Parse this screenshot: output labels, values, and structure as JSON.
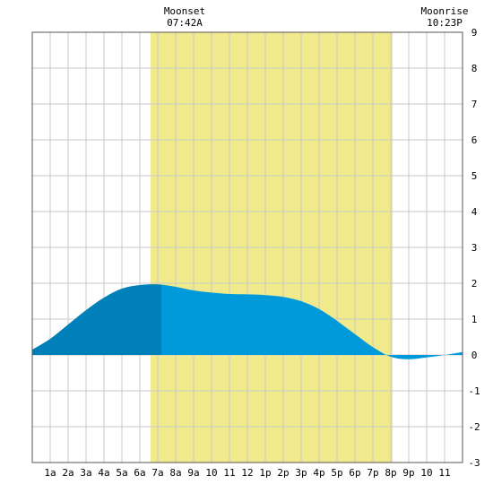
{
  "moonset": {
    "label": "Moonset",
    "time": "07:42A"
  },
  "moonrise": {
    "label": "Moonrise",
    "time": "10:23P"
  },
  "colors": {
    "background": "#ffffff",
    "grid": "#c8c8c8",
    "frame": "#555555",
    "daylight": "#f0ea8c",
    "tide_dark": "#0080b8",
    "tide_light": "#0099da"
  },
  "chart_data": {
    "type": "area",
    "title": "",
    "xlabel": "",
    "ylabel": "",
    "x_tick_labels": [
      "1a",
      "2a",
      "3a",
      "4a",
      "5a",
      "6a",
      "7a",
      "8a",
      "9a",
      "10",
      "11",
      "12",
      "1p",
      "2p",
      "3p",
      "4p",
      "5p",
      "6p",
      "7p",
      "8p",
      "9p",
      "10",
      "11"
    ],
    "x_range_hours": [
      0,
      24
    ],
    "ylim": [
      -3,
      9
    ],
    "y_ticks": [
      -3,
      -2,
      -1,
      0,
      1,
      2,
      3,
      4,
      5,
      6,
      7,
      8,
      9
    ],
    "grid": true,
    "daylight_band_hours": [
      6.6,
      20.1
    ],
    "dark_shading_until_hour": 7.2,
    "series": [
      {
        "x": [
          0,
          1,
          2,
          3,
          4,
          5,
          6,
          7,
          8,
          9,
          10,
          11,
          12,
          13,
          14,
          15,
          16,
          17,
          18,
          19,
          20,
          21,
          22,
          23,
          24
        ],
        "values": [
          0.15,
          0.45,
          0.85,
          1.25,
          1.6,
          1.85,
          1.95,
          1.97,
          1.9,
          1.8,
          1.74,
          1.7,
          1.69,
          1.67,
          1.62,
          1.5,
          1.28,
          0.95,
          0.58,
          0.22,
          -0.05,
          -0.12,
          -0.07,
          0.0,
          0.08
        ]
      }
    ]
  }
}
